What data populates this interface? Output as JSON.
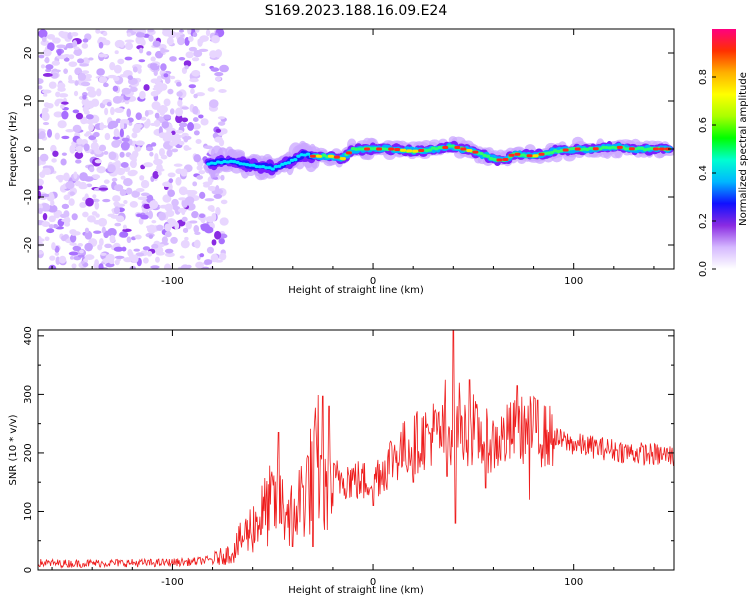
{
  "title": "S169.2023.188.16.09.E24",
  "chart_data": [
    {
      "type": "heatmap",
      "xlabel": "Height of straight line (km)",
      "ylabel": "Frequency (Hz)",
      "xlim": [
        -167,
        150
      ],
      "ylim": [
        -25,
        25
      ],
      "xticks": [
        -100,
        0,
        100
      ],
      "yticks": [
        -20,
        -10,
        0,
        10,
        20
      ],
      "ridge": {
        "x": [
          -82,
          -70,
          -60,
          -50,
          -40,
          -35,
          -30,
          -20,
          -15,
          -10,
          0,
          10,
          20,
          30,
          40,
          50,
          60,
          65,
          70,
          80,
          90,
          100,
          110,
          120,
          130,
          140,
          148
        ],
        "freq": [
          -3,
          -2.5,
          -3.5,
          -4,
          -2.5,
          -1,
          -1.5,
          -1.5,
          -2,
          0,
          0,
          0,
          -0.5,
          0,
          0.5,
          -0.5,
          -2,
          -2.5,
          -1,
          -1.5,
          -0.5,
          0,
          0,
          0.5,
          0,
          0,
          0
        ]
      },
      "noise_region_x": [
        -167,
        -80
      ]
    },
    {
      "type": "line",
      "xlabel": "Height of straight line (km)",
      "ylabel": "SNR (10 * v/v)",
      "xlim": [
        -167,
        150
      ],
      "ylim": [
        0,
        410
      ],
      "xticks": [
        -100,
        0,
        100
      ],
      "yticks": [
        0,
        100,
        200,
        300,
        400
      ],
      "series": [
        {
          "color": "#ee1c1c",
          "x": [
            -167,
            -150,
            -130,
            -110,
            -90,
            -80,
            -70,
            -65,
            -60,
            -55,
            -50,
            -45,
            -40,
            -35,
            -30,
            -27,
            -25,
            -20,
            -15,
            -10,
            -5,
            0,
            5,
            10,
            15,
            20,
            25,
            30,
            35,
            40,
            45,
            50,
            55,
            60,
            65,
            70,
            75,
            80,
            85,
            90,
            95,
            100,
            110,
            120,
            130,
            140,
            150
          ],
          "y": [
            12,
            11,
            12,
            12,
            14,
            18,
            30,
            55,
            75,
            95,
            115,
            105,
            95,
            130,
            160,
            190,
            110,
            150,
            160,
            155,
            150,
            160,
            170,
            195,
            205,
            215,
            225,
            235,
            230,
            240,
            235,
            235,
            225,
            215,
            225,
            235,
            240,
            240,
            230,
            225,
            220,
            215,
            210,
            205,
            200,
            197,
            195
          ],
          "peaks": [
            [
              -47,
              235
            ],
            [
              -25,
              297
            ],
            [
              -22,
              280
            ],
            [
              20,
              305
            ],
            [
              36,
              325
            ],
            [
              40,
              410
            ],
            [
              43,
              320
            ],
            [
              48,
              325
            ],
            [
              50,
              300
            ],
            [
              72,
              315
            ],
            [
              78,
              325
            ],
            [
              82,
              290
            ]
          ],
          "dips": [
            [
              -40,
              40
            ],
            [
              -30,
              40
            ],
            [
              0,
              110
            ],
            [
              20,
              150
            ],
            [
              37,
              160
            ],
            [
              41,
              80
            ],
            [
              56,
              140
            ],
            [
              78,
              120
            ]
          ]
        }
      ]
    }
  ],
  "colorbar": {
    "label": "Normalized spectral amplitude",
    "range": [
      0,
      1
    ],
    "ticks": [
      "0.0",
      "0.2",
      "0.4",
      "0.6",
      "0.8"
    ],
    "tick_values": [
      0,
      0.2,
      0.4,
      0.6,
      0.8
    ],
    "stops": [
      "#ffffff",
      "#d5b8ff",
      "#8a2be2",
      "#1010ff",
      "#00b7ff",
      "#00ffd0",
      "#00ff00",
      "#aaff00",
      "#ffff00",
      "#ffb000",
      "#ff3000",
      "#ff0080"
    ]
  }
}
